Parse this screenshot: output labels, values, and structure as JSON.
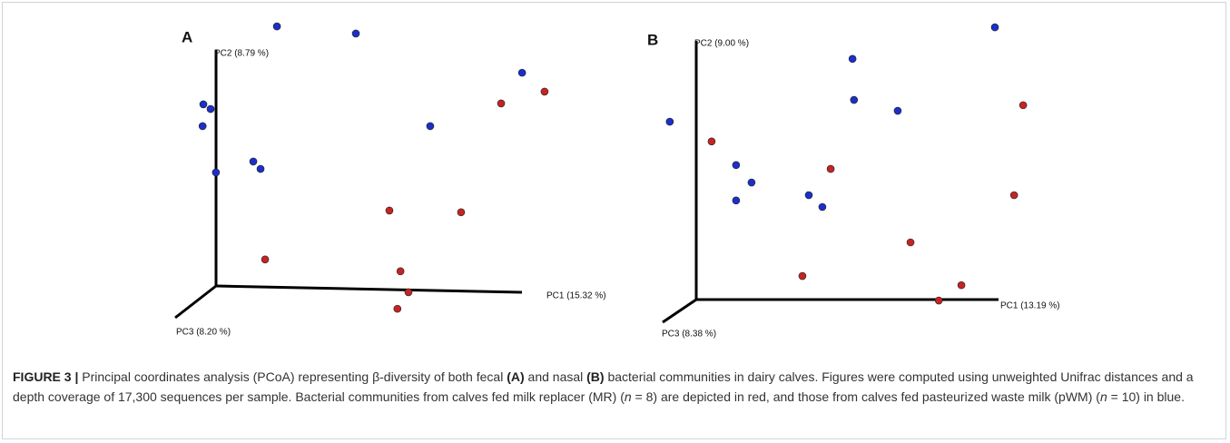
{
  "chart_data": [
    {
      "type": "scatter",
      "title": "A",
      "xlabel": "PC1 (15.32 %)",
      "ylabel": "PC2 (8.79 %)",
      "zlabel": "PC3 (8.20 %)",
      "xlim": [
        0,
        100
      ],
      "ylim": [
        0,
        100
      ],
      "series": [
        {
          "color": "#1c2fc8",
          "x": [
            27.4,
            48.1,
            91.7,
            8.1,
            10.0,
            7.9,
            67.6,
            21.2,
            23.1,
            11.4
          ],
          "values": [
            97.2,
            94.8,
            81.5,
            70.8,
            69.2,
            63.4,
            63.4,
            51.4,
            48.9,
            47.7
          ]
        },
        {
          "color": "#c42424",
          "x": [
            97.6,
            86.2,
            56.9,
            75.7,
            24.3,
            59.8,
            61.9,
            59.0
          ],
          "values": [
            75.1,
            71.1,
            34.8,
            34.2,
            18.2,
            14.2,
            7.1,
            1.5
          ]
        }
      ]
    },
    {
      "type": "scatter",
      "title": "B",
      "xlabel": "PC1 (13.19 %)",
      "ylabel": "PC2 (9.00 %)",
      "zlabel": "PC3 (8.38 %)",
      "xlim": [
        0,
        100
      ],
      "ylim": [
        0,
        100
      ],
      "series": [
        {
          "color": "#1c2fc8",
          "x": [
            89.4,
            51.6,
            3.1,
            52.0,
            63.6,
            20.7,
            24.8,
            40.0,
            20.7,
            43.6
          ],
          "values": [
            96.9,
            86.2,
            64.9,
            72.3,
            68.6,
            50.2,
            44.3,
            40.0,
            38.2,
            36.0
          ]
        },
        {
          "color": "#c42424",
          "x": [
            14.2,
            96.9,
            45.8,
            94.5,
            67.0,
            38.3,
            80.5,
            74.5
          ],
          "values": [
            58.2,
            70.5,
            48.9,
            40.0,
            24.0,
            12.6,
            9.5,
            4.3
          ]
        }
      ]
    }
  ],
  "caption": [
    "FIGURE 3 |",
    " Principal coordinates analysis (PCoA) representing β-diversity of both fecal ",
    "(A)",
    " and nasal ",
    "(B)",
    " bacterial communities in dairy calves. Figures were computed using unweighted Unifrac distances and a depth coverage of 17,300 sequences per sample. Bacterial communities from calves fed milk replacer (MR) (",
    "n",
    " = 8) are depicted in red, and those from calves fed pasteurized waste milk (pWM) (",
    "n",
    " = 10) in blue."
  ]
}
